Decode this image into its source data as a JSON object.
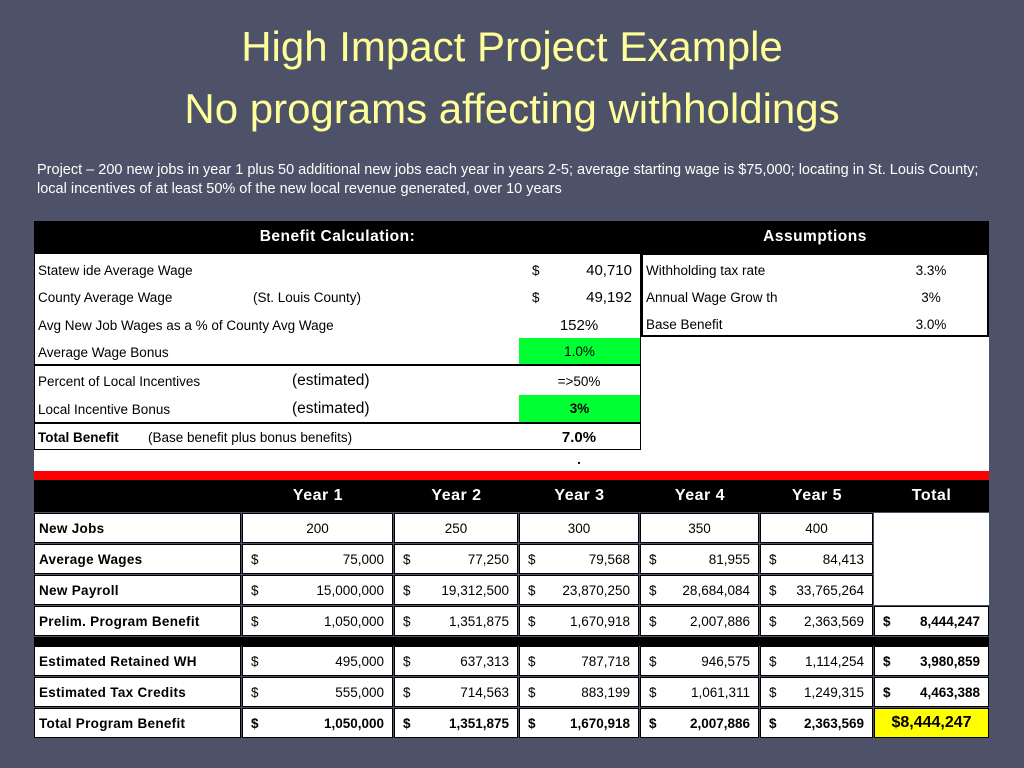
{
  "slide": {
    "title_line1": "High Impact Project Example",
    "title_line2": "No programs affecting withholdings",
    "description": "Project – 200 new jobs in year 1 plus 50 additional new jobs each year in years 2-5; average starting wage is $75,000; locating in St. Louis County; local incentives of at least 50% of the new local revenue generated, over 10 years"
  },
  "benefit": {
    "header": "Benefit Calculation:",
    "rows": [
      {
        "label": "Statew ide Average Wage",
        "note": "",
        "cur": "$",
        "value": "40,710"
      },
      {
        "label": "County Average Wage",
        "note": "(St. Louis County)",
        "cur": "$",
        "value": "49,192"
      },
      {
        "label": "Avg New Job Wages as a % of County Avg Wage",
        "note": "",
        "cur": "",
        "value": "152%"
      },
      {
        "label": "Average Wage Bonus",
        "note": "",
        "cur": "",
        "value": "1.0%"
      },
      {
        "label": "Percent of Local Incentives",
        "note": "(estimated)",
        "cur": "",
        "value": "=>50%"
      },
      {
        "label": "Local Incentive Bonus",
        "note": "(estimated)",
        "cur": "",
        "value": "3%"
      }
    ],
    "total_label": "Total Benefit",
    "total_note": "(Base benefit plus bonus benefits)",
    "total_value": "7.0%",
    "dot": "."
  },
  "assumptions": {
    "header": "Assumptions",
    "rows": [
      {
        "label": "Withholding tax rate",
        "value": "3.3%"
      },
      {
        "label": "Annual Wage Grow th",
        "value": "3%"
      },
      {
        "label": "Base Benefit",
        "value": "3.0%"
      }
    ]
  },
  "years_table": {
    "columns": [
      "Year 1",
      "Year 2",
      "Year 3",
      "Year 4",
      "Year 5",
      "Total"
    ],
    "new_jobs": {
      "label": "New Jobs",
      "values": [
        "200",
        "250",
        "300",
        "350",
        "400"
      ]
    },
    "avg_wages": {
      "label": "Average Wages",
      "values": [
        "75,000",
        "77,250",
        "79,568",
        "81,955",
        "84,413"
      ]
    },
    "new_payroll": {
      "label": "New Payroll",
      "values": [
        "15,000,000",
        "19,312,500",
        "23,870,250",
        "28,684,084",
        "33,765,264"
      ]
    },
    "prelim": {
      "label": "Prelim. Program Benefit",
      "values": [
        "1,050,000",
        "1,351,875",
        "1,670,918",
        "2,007,886",
        "2,363,569"
      ],
      "total": "8,444,247"
    },
    "retained": {
      "label": "Estimated Retained WH",
      "values": [
        "495,000",
        "637,313",
        "787,718",
        "946,575",
        "1,114,254"
      ],
      "total": "3,980,859"
    },
    "tax_credits": {
      "label": "Estimated Tax Credits",
      "values": [
        "555,000",
        "714,563",
        "883,199",
        "1,061,311",
        "1,249,315"
      ],
      "total": "4,463,388"
    },
    "total_benefit": {
      "label": "Total Program Benefit",
      "values": [
        "1,050,000",
        "1,351,875",
        "1,670,918",
        "2,007,886",
        "2,363,569"
      ],
      "total": "$8,444,247"
    },
    "currency": "$"
  },
  "colors": {
    "background": "#4d5268",
    "title": "#ffff99",
    "highlight_green": "#00ff33",
    "highlight_yellow": "#ffff00",
    "divider_red": "#ff0000"
  }
}
